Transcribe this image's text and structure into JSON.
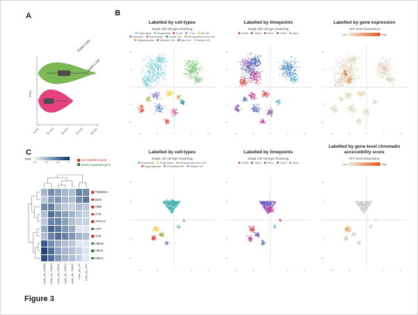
{
  "figure_caption": "Figure 3",
  "panel_labels": {
    "a": "A",
    "b": "B",
    "c": "C"
  },
  "panel_b_axis": {
    "x_ticks": [
      "-10",
      "-5",
      "0",
      "5",
      "10"
    ],
    "y_ticks": [
      "-10",
      "-5",
      "0",
      "5",
      "10"
    ]
  },
  "chart_data": [
    {
      "id": "violin_tpm",
      "panel": "A",
      "type": "violin",
      "axis_label": "TPM",
      "value_ticks": [
        "5,000",
        "10,000",
        "15,000",
        "20,000",
        "25,000"
      ],
      "groups": [
        {
          "label": "Fetal Liver",
          "color": "#7cb854"
        },
        {
          "label": "Adult Liver",
          "color": "#e6407e"
        }
      ],
      "box_color": "#4d4d4d"
    },
    {
      "id": "umap_rna_celltypes",
      "panel": "B",
      "type": "scatter",
      "title": "Labelled by cell-types",
      "legend": {
        "kind": "categorical",
        "title": "Single cell cell type clustering",
        "items": [
          {
            "label": "Erythroblast",
            "color": "#7ecfd6"
          },
          {
            "label": "Hepatoblast",
            "color": "#7cc87c"
          },
          {
            "label": "B Cell",
            "color": "#e2453c"
          },
          {
            "label": "T Cell",
            "color": "#9575cd"
          },
          {
            "label": "NK Cell",
            "color": "#f6d33c"
          },
          {
            "label": "Monocyte",
            "color": "#5c85d6"
          },
          {
            "label": "Macrophage",
            "color": "#d4569b"
          },
          {
            "label": "Kupffer Cell",
            "color": "#2e8b8b"
          },
          {
            "label": "Hematopoietic Stem Cell",
            "color": "#a4b545"
          },
          {
            "label": "Megakaryocyte",
            "color": "#f09235"
          },
          {
            "label": "Dendritic Cell",
            "color": "#8d6e63"
          },
          {
            "label": "Mast Cell",
            "color": "#5c6bc0"
          },
          {
            "label": "Stellate Cell",
            "color": "#bdbdbd"
          }
        ]
      },
      "clusters": [
        {
          "x": 0.26,
          "y": 0.3,
          "rx": 0.13,
          "ry": 0.15,
          "n": 320,
          "color": "#7ecfd6"
        },
        {
          "x": 0.17,
          "y": 0.44,
          "rx": 0.07,
          "ry": 0.07,
          "n": 90,
          "color": "#7ecfd6"
        },
        {
          "x": 0.34,
          "y": 0.17,
          "rx": 0.06,
          "ry": 0.05,
          "n": 70,
          "color": "#7ecfd6"
        },
        {
          "x": 0.72,
          "y": 0.28,
          "rx": 0.09,
          "ry": 0.11,
          "n": 200,
          "color": "#7cc87c"
        },
        {
          "x": 0.79,
          "y": 0.41,
          "rx": 0.05,
          "ry": 0.05,
          "n": 55,
          "color": "#7cc87c"
        },
        {
          "x": 0.1,
          "y": 0.76,
          "rx": 0.035,
          "ry": 0.05,
          "n": 45,
          "color": "#e2453c"
        },
        {
          "x": 0.28,
          "y": 0.6,
          "rx": 0.05,
          "ry": 0.04,
          "n": 55,
          "color": "#9575cd"
        },
        {
          "x": 0.44,
          "y": 0.58,
          "rx": 0.04,
          "ry": 0.04,
          "n": 45,
          "color": "#f6d33c"
        },
        {
          "x": 0.32,
          "y": 0.76,
          "rx": 0.05,
          "ry": 0.05,
          "n": 60,
          "color": "#5c85d6"
        },
        {
          "x": 0.5,
          "y": 0.8,
          "rx": 0.04,
          "ry": 0.045,
          "n": 45,
          "color": "#d4569b"
        },
        {
          "x": 0.6,
          "y": 0.68,
          "rx": 0.03,
          "ry": 0.03,
          "n": 30,
          "color": "#2e8b8b"
        },
        {
          "x": 0.41,
          "y": 0.91,
          "rx": 0.03,
          "ry": 0.03,
          "n": 35,
          "color": "#e2453c"
        },
        {
          "x": 0.19,
          "y": 0.64,
          "rx": 0.03,
          "ry": 0.03,
          "n": 30,
          "color": "#a4b545"
        },
        {
          "x": 0.55,
          "y": 0.62,
          "rx": 0.025,
          "ry": 0.025,
          "n": 20,
          "color": "#f09235"
        }
      ]
    },
    {
      "id": "umap_rna_timepoints",
      "panel": "B",
      "type": "scatter",
      "title": "Labelled by timepoints",
      "legend": {
        "kind": "categorical",
        "title": "Single cell cell type clustering",
        "items": [
          {
            "label": "GW08",
            "color": "#d64541"
          },
          {
            "label": "GW09",
            "color": "#7b52ab"
          },
          {
            "label": "GW11",
            "color": "#c2429c"
          },
          {
            "label": "GW16",
            "color": "#4a69bd"
          },
          {
            "label": "Adult",
            "color": "#63b8d6"
          }
        ]
      },
      "clusters": [
        {
          "x": 0.23,
          "y": 0.24,
          "rx": 0.09,
          "ry": 0.1,
          "n": 180,
          "color": "#7b52ab"
        },
        {
          "x": 0.3,
          "y": 0.37,
          "rx": 0.08,
          "ry": 0.08,
          "n": 140,
          "color": "#c2429c"
        },
        {
          "x": 0.33,
          "y": 0.19,
          "rx": 0.06,
          "ry": 0.06,
          "n": 90,
          "color": "#4a69bd"
        },
        {
          "x": 0.17,
          "y": 0.43,
          "rx": 0.05,
          "ry": 0.06,
          "n": 70,
          "color": "#d64541"
        },
        {
          "x": 0.26,
          "y": 0.3,
          "rx": 0.11,
          "ry": 0.11,
          "n": 60,
          "color": "#63b8d6"
        },
        {
          "x": 0.72,
          "y": 0.28,
          "rx": 0.09,
          "ry": 0.11,
          "n": 200,
          "color": "#4a86c8"
        },
        {
          "x": 0.78,
          "y": 0.41,
          "rx": 0.05,
          "ry": 0.05,
          "n": 55,
          "color": "#63b8d6"
        },
        {
          "x": 0.1,
          "y": 0.76,
          "rx": 0.035,
          "ry": 0.05,
          "n": 45,
          "color": "#7b52ab"
        },
        {
          "x": 0.28,
          "y": 0.6,
          "rx": 0.05,
          "ry": 0.04,
          "n": 55,
          "color": "#c2429c"
        },
        {
          "x": 0.44,
          "y": 0.58,
          "rx": 0.04,
          "ry": 0.04,
          "n": 45,
          "color": "#d64541"
        },
        {
          "x": 0.32,
          "y": 0.76,
          "rx": 0.05,
          "ry": 0.05,
          "n": 60,
          "color": "#4a69bd"
        },
        {
          "x": 0.5,
          "y": 0.8,
          "rx": 0.04,
          "ry": 0.045,
          "n": 45,
          "color": "#7b52ab"
        },
        {
          "x": 0.6,
          "y": 0.68,
          "rx": 0.03,
          "ry": 0.03,
          "n": 30,
          "color": "#63b8d6"
        },
        {
          "x": 0.41,
          "y": 0.91,
          "rx": 0.03,
          "ry": 0.03,
          "n": 35,
          "color": "#c2429c"
        },
        {
          "x": 0.19,
          "y": 0.64,
          "rx": 0.03,
          "ry": 0.03,
          "n": 30,
          "color": "#4a69bd"
        }
      ]
    },
    {
      "id": "umap_rna_expression",
      "panel": "B",
      "type": "scatter",
      "title": "Labelled by gene expression",
      "legend": {
        "kind": "gradient",
        "title": "AFP Gene Expression",
        "low_label": "Low",
        "high_label": "High",
        "colors": [
          "#f3ead9",
          "#e5541b"
        ]
      },
      "clusters": [
        {
          "x": 0.26,
          "y": 0.3,
          "rx": 0.13,
          "ry": 0.15,
          "n": 300,
          "color": "#ddd1b9"
        },
        {
          "x": 0.17,
          "y": 0.44,
          "rx": 0.07,
          "ry": 0.07,
          "n": 85,
          "color": "#ddd1b9"
        },
        {
          "x": 0.34,
          "y": 0.17,
          "rx": 0.06,
          "ry": 0.05,
          "n": 65,
          "color": "#ddd1b9"
        },
        {
          "x": 0.29,
          "y": 0.41,
          "rx": 0.05,
          "ry": 0.05,
          "n": 60,
          "color": "#e3a264"
        },
        {
          "x": 0.24,
          "y": 0.34,
          "rx": 0.035,
          "ry": 0.035,
          "n": 30,
          "color": "#d97f3e"
        },
        {
          "x": 0.72,
          "y": 0.28,
          "rx": 0.09,
          "ry": 0.11,
          "n": 190,
          "color": "#ddd1b9"
        },
        {
          "x": 0.79,
          "y": 0.41,
          "rx": 0.05,
          "ry": 0.05,
          "n": 50,
          "color": "#ddd1b9"
        },
        {
          "x": 0.1,
          "y": 0.76,
          "rx": 0.035,
          "ry": 0.05,
          "n": 40,
          "color": "#ddd1b9"
        },
        {
          "x": 0.28,
          "y": 0.6,
          "rx": 0.05,
          "ry": 0.04,
          "n": 50,
          "color": "#ddd1b9"
        },
        {
          "x": 0.44,
          "y": 0.58,
          "rx": 0.04,
          "ry": 0.04,
          "n": 40,
          "color": "#e7c79b"
        },
        {
          "x": 0.32,
          "y": 0.76,
          "rx": 0.05,
          "ry": 0.05,
          "n": 55,
          "color": "#ddd1b9"
        },
        {
          "x": 0.5,
          "y": 0.8,
          "rx": 0.04,
          "ry": 0.045,
          "n": 40,
          "color": "#ddd1b9"
        },
        {
          "x": 0.6,
          "y": 0.68,
          "rx": 0.03,
          "ry": 0.03,
          "n": 25,
          "color": "#ddd1b9"
        },
        {
          "x": 0.41,
          "y": 0.91,
          "rx": 0.03,
          "ry": 0.03,
          "n": 30,
          "color": "#ddd1b9"
        },
        {
          "x": 0.19,
          "y": 0.64,
          "rx": 0.03,
          "ry": 0.03,
          "n": 25,
          "color": "#ddd1b9"
        }
      ]
    },
    {
      "id": "umap_atac_celltypes",
      "panel": "B",
      "type": "scatter",
      "title": "Labelled by cell-types",
      "legend": {
        "kind": "categorical",
        "title": "Single cell cell type clustering",
        "items": [
          {
            "label": "Hepatoblast",
            "color": "#3fb0ac"
          },
          {
            "label": "Erythroblast",
            "color": "#f6d33c"
          },
          {
            "label": "Hematopoietic Stem Cell",
            "color": "#a4b545"
          },
          {
            "label": "Megakaryocyte",
            "color": "#e2453c"
          },
          {
            "label": "Endothelial Cell",
            "color": "#9575cd"
          },
          {
            "label": "Stellate Cell",
            "color": "#999999"
          }
        ]
      },
      "clusters": [
        {
          "tri": true,
          "x": 0.47,
          "y": 0.36,
          "w": 0.22,
          "h": 0.14,
          "n": 300,
          "color": "#3fb0ac"
        },
        {
          "x": 0.47,
          "y": 0.3,
          "rx": 0.08,
          "ry": 0.025,
          "n": 50,
          "color": "#3fb0ac"
        },
        {
          "x": 0.28,
          "y": 0.6,
          "rx": 0.035,
          "ry": 0.03,
          "n": 45,
          "color": "#f6d33c"
        },
        {
          "x": 0.25,
          "y": 0.7,
          "rx": 0.03,
          "ry": 0.03,
          "n": 40,
          "color": "#e2453c"
        },
        {
          "x": 0.34,
          "y": 0.66,
          "rx": 0.03,
          "ry": 0.025,
          "n": 35,
          "color": "#a4b545"
        },
        {
          "x": 0.41,
          "y": 0.75,
          "rx": 0.025,
          "ry": 0.025,
          "n": 25,
          "color": "#9575cd"
        },
        {
          "x": 0.55,
          "y": 0.57,
          "rx": 0.02,
          "ry": 0.02,
          "n": 15,
          "color": "#3fb0ac"
        },
        {
          "x": 0.62,
          "y": 0.5,
          "rx": 0.015,
          "ry": 0.015,
          "n": 10,
          "color": "#999999"
        }
      ]
    },
    {
      "id": "umap_atac_timepoints",
      "panel": "B",
      "type": "scatter",
      "title": "Labelled by timepoints",
      "legend": {
        "kind": "categorical",
        "title": "Single cell cell type clustering",
        "items": [
          {
            "label": "GW08",
            "color": "#d64541"
          },
          {
            "label": "GW09",
            "color": "#7b52ab"
          },
          {
            "label": "GW11",
            "color": "#c2429c"
          },
          {
            "label": "GW16",
            "color": "#4a69bd"
          },
          {
            "label": "Adult",
            "color": "#63b8d6"
          }
        ]
      },
      "clusters": [
        {
          "tri": true,
          "x": 0.47,
          "y": 0.36,
          "w": 0.22,
          "h": 0.14,
          "n": 280,
          "color": "#8e5bbf"
        },
        {
          "x": 0.5,
          "y": 0.39,
          "rx": 0.05,
          "ry": 0.035,
          "n": 60,
          "color": "#c2429c"
        },
        {
          "x": 0.45,
          "y": 0.31,
          "rx": 0.07,
          "ry": 0.02,
          "n": 40,
          "color": "#4a69bd"
        },
        {
          "x": 0.28,
          "y": 0.6,
          "rx": 0.035,
          "ry": 0.03,
          "n": 45,
          "color": "#d64541"
        },
        {
          "x": 0.25,
          "y": 0.7,
          "rx": 0.03,
          "ry": 0.03,
          "n": 40,
          "color": "#c2429c"
        },
        {
          "x": 0.34,
          "y": 0.66,
          "rx": 0.03,
          "ry": 0.025,
          "n": 35,
          "color": "#7b52ab"
        },
        {
          "x": 0.41,
          "y": 0.75,
          "rx": 0.025,
          "ry": 0.025,
          "n": 25,
          "color": "#4a69bd"
        },
        {
          "x": 0.55,
          "y": 0.57,
          "rx": 0.02,
          "ry": 0.02,
          "n": 15,
          "color": "#63b8d6"
        },
        {
          "x": 0.62,
          "y": 0.5,
          "rx": 0.015,
          "ry": 0.015,
          "n": 10,
          "color": "#d64541"
        }
      ]
    },
    {
      "id": "umap_atac_score",
      "panel": "B",
      "type": "scatter",
      "title": "Labelled by gene-level chromatin accessibility score",
      "legend": {
        "kind": "gradient",
        "title": "AFP Gene Expression",
        "low_label": "Low",
        "high_label": "High",
        "colors": [
          "#f3ead9",
          "#e5541b"
        ]
      },
      "clusters": [
        {
          "tri": true,
          "x": 0.47,
          "y": 0.36,
          "w": 0.22,
          "h": 0.14,
          "n": 280,
          "color": "#c9c9c9"
        },
        {
          "x": 0.28,
          "y": 0.6,
          "rx": 0.035,
          "ry": 0.03,
          "n": 45,
          "color": "#e0a665"
        },
        {
          "x": 0.25,
          "y": 0.7,
          "rx": 0.03,
          "ry": 0.03,
          "n": 40,
          "color": "#dccfb9"
        },
        {
          "x": 0.34,
          "y": 0.66,
          "rx": 0.03,
          "ry": 0.025,
          "n": 35,
          "color": "#dccfb9"
        },
        {
          "x": 0.41,
          "y": 0.75,
          "rx": 0.025,
          "ry": 0.025,
          "n": 25,
          "color": "#dccfb9"
        },
        {
          "x": 0.55,
          "y": 0.57,
          "rx": 0.02,
          "ry": 0.02,
          "n": 15,
          "color": "#cfcfcf"
        },
        {
          "x": 0.62,
          "y": 0.5,
          "rx": 0.015,
          "ry": 0.015,
          "n": 10,
          "color": "#cfcfcf"
        }
      ]
    },
    {
      "id": "heatmap_tpm",
      "panel": "C",
      "type": "heatmap",
      "scale": {
        "label": "TPM",
        "ticks": [
          "0.4",
          "0.6",
          "0.8",
          "1"
        ],
        "colors": [
          "#f7fbff",
          "#08306b"
        ]
      },
      "legend": [
        {
          "label": "up-regulated gene",
          "color": "#d93025"
        },
        {
          "label": "down-regulated gene",
          "color": "#2e7d32"
        }
      ],
      "rows": [
        {
          "label": "TMSB4X",
          "regulation": "up"
        },
        {
          "label": "B2M",
          "regulation": "up"
        },
        {
          "label": "HBB",
          "regulation": "up"
        },
        {
          "label": "TTR",
          "regulation": "up"
        },
        {
          "label": "APOA1",
          "regulation": "up"
        },
        {
          "label": "AFP",
          "regulation": "down"
        },
        {
          "label": "ALB",
          "regulation": "up"
        },
        {
          "label": "HBG2",
          "regulation": "down"
        },
        {
          "label": "HBA2",
          "regulation": "down"
        },
        {
          "label": "HBA1",
          "regulation": "down"
        }
      ],
      "cols": [
        "Liver_AL_GW08",
        "Liver_AL_GW10",
        "Liver_AL_GW11",
        "Liver_AL_GW13",
        "Liver_AL_GW16",
        "Liver_AL_5Y",
        "Liver_AL_31Y"
      ],
      "values": [
        [
          0.35,
          0.55,
          0.45,
          0.35,
          0.3,
          0.6,
          0.55
        ],
        [
          0.25,
          0.45,
          0.5,
          0.35,
          0.3,
          0.55,
          0.65
        ],
        [
          0.55,
          0.6,
          0.35,
          0.25,
          0.2,
          0.3,
          0.25
        ],
        [
          0.3,
          0.7,
          0.55,
          0.45,
          0.35,
          0.25,
          0.2
        ],
        [
          0.25,
          0.6,
          0.6,
          0.45,
          0.3,
          0.2,
          0.2
        ],
        [
          0.4,
          0.75,
          0.65,
          0.5,
          0.4,
          0.1,
          0.1
        ],
        [
          0.3,
          0.6,
          0.7,
          0.6,
          0.5,
          0.35,
          0.3
        ],
        [
          0.8,
          0.55,
          0.4,
          0.3,
          0.25,
          0.1,
          0.1
        ],
        [
          0.9,
          0.7,
          0.45,
          0.35,
          0.3,
          0.2,
          0.1
        ],
        [
          0.85,
          0.7,
          0.5,
          0.35,
          0.3,
          0.2,
          0.1
        ]
      ]
    }
  ]
}
